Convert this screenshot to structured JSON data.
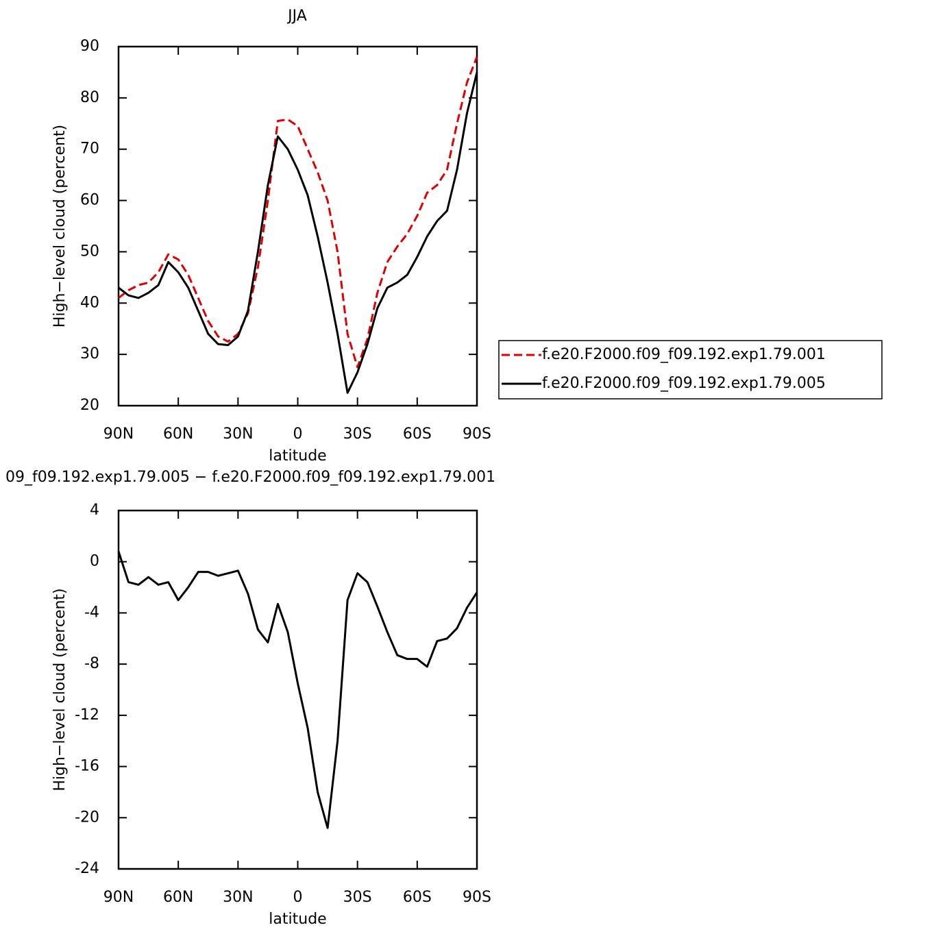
{
  "chart_data": [
    {
      "type": "line",
      "title": "JJA",
      "xlabel": "latitude",
      "ylabel": "High−level cloud (percent)",
      "x": [
        90,
        85,
        80,
        75,
        70,
        65,
        60,
        55,
        50,
        45,
        40,
        35,
        30,
        25,
        20,
        15,
        10,
        5,
        0,
        -5,
        -10,
        -15,
        -20,
        -25,
        -30,
        -35,
        -40,
        -45,
        -50,
        -55,
        -60,
        -65,
        -70,
        -75,
        -80,
        -85,
        -90
      ],
      "series": [
        {
          "name": "f.e20.F2000.f09_f09.192.exp1.79.001",
          "color": "#e00000",
          "dashed": true,
          "values": [
            41,
            42.5,
            43.5,
            44,
            46,
            49.5,
            48.5,
            45.5,
            41,
            36.5,
            33.5,
            32.5,
            34,
            38,
            47,
            60,
            75.5,
            75.8,
            74.5,
            70,
            65.5,
            60,
            50,
            34,
            27.5,
            33,
            42,
            48,
            51,
            53.5,
            57,
            61.5,
            63,
            66,
            75,
            83,
            88
          ]
        },
        {
          "name": "f.e20.F2000.f09_f09.192.exp1.79.005",
          "color": "#000000",
          "dashed": false,
          "values": [
            43,
            41.5,
            41,
            42,
            43.5,
            48,
            46,
            43,
            38.5,
            34,
            32,
            31.8,
            33.5,
            38.5,
            50,
            63,
            72.5,
            70,
            66,
            61,
            53,
            44,
            34,
            22.5,
            26.5,
            32,
            39,
            43,
            44,
            45.5,
            49,
            53,
            56,
            58,
            66,
            77,
            85
          ]
        }
      ],
      "xlim": [
        90,
        -90
      ],
      "xticks": [
        {
          "value": 90,
          "label": "90N"
        },
        {
          "value": 60,
          "label": "60N"
        },
        {
          "value": 30,
          "label": "30N"
        },
        0,
        {
          "value": -30,
          "label": "30S"
        },
        {
          "value": -60,
          "label": "60S"
        },
        {
          "value": -90,
          "label": "90S"
        }
      ],
      "ylim": [
        20,
        90
      ],
      "yticks": [
        20,
        30,
        40,
        50,
        60,
        70,
        80,
        90
      ],
      "legend": "right"
    },
    {
      "type": "line",
      "title": "09_f09.192.exp1.79.005 − f.e20.F2000.f09_f09.192.exp1.79.001",
      "xlabel": "latitude",
      "ylabel": "High−level cloud (percent)",
      "x": [
        90,
        85,
        80,
        75,
        70,
        65,
        60,
        55,
        50,
        45,
        40,
        35,
        30,
        25,
        20,
        15,
        10,
        5,
        0,
        -5,
        -10,
        -15,
        -20,
        -25,
        -30,
        -35,
        -40,
        -45,
        -50,
        -55,
        -60,
        -65,
        -70,
        -75,
        -80,
        -85,
        -90
      ],
      "series": [
        {
          "color": "#000000",
          "dashed": false,
          "values": [
            0.8,
            -1.6,
            -1.8,
            -1.2,
            -1.8,
            -1.6,
            -3,
            -2,
            -0.8,
            -0.8,
            -1.1,
            -0.9,
            -0.7,
            -2.5,
            -5.3,
            -6.3,
            -3.3,
            -5.5,
            -9.5,
            -13,
            -18,
            -20.8,
            -14,
            -3,
            -0.9,
            -1.6,
            -3.5,
            -5.5,
            -7.3,
            -7.6,
            -7.6,
            -8.2,
            -6.2,
            -6,
            -5.2,
            -3.6,
            -2.4
          ]
        }
      ],
      "xlim": [
        90,
        -90
      ],
      "xticks": [
        {
          "value": 90,
          "label": "90N"
        },
        {
          "value": 60,
          "label": "60N"
        },
        {
          "value": 30,
          "label": "30N"
        },
        0,
        {
          "value": -30,
          "label": "30S"
        },
        {
          "value": -60,
          "label": "60S"
        },
        {
          "value": -90,
          "label": "90S"
        }
      ],
      "ylim": [
        -24,
        4
      ],
      "yticks": [
        -24,
        -20,
        -16,
        -12,
        -8,
        -4,
        0,
        4
      ]
    }
  ]
}
